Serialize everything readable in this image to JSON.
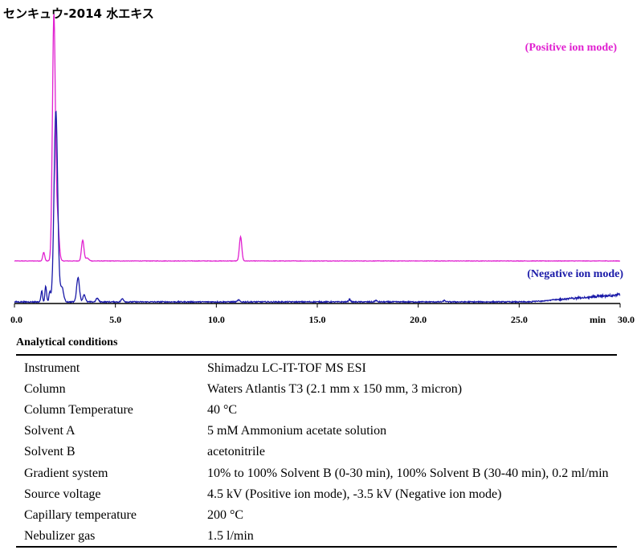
{
  "title": "センキュウ-2014 水エキス",
  "chart_data": {
    "type": "line",
    "x_axis": {
      "range": [
        0,
        30
      ],
      "ticks": [
        0,
        5,
        10,
        15,
        20,
        25,
        30
      ],
      "tick_labels": [
        "0.0",
        "5.0",
        "10.0",
        "15.0",
        "20.0",
        "25.0",
        "30.0"
      ],
      "unit_label": "min"
    },
    "series": [
      {
        "name": "(Positive ion mode)",
        "color": "#e020d0",
        "baseline": 0,
        "noise": 0.15,
        "peaks": [
          {
            "rt": 1.45,
            "height": 3.5,
            "width": 0.05
          },
          {
            "rt": 1.95,
            "height": 100,
            "width": 0.07
          },
          {
            "rt": 2.12,
            "height": 18,
            "width": 0.08
          },
          {
            "rt": 3.38,
            "height": 8.5,
            "width": 0.06
          },
          {
            "rt": 3.6,
            "height": 1.2,
            "width": 0.08
          },
          {
            "rt": 11.2,
            "height": 10,
            "width": 0.06
          }
        ]
      },
      {
        "name": "(Negative ion mode)",
        "color": "#1a1aa8",
        "baseline": 0,
        "noise": 0.45,
        "peaks": [
          {
            "rt": 1.35,
            "height": 4.5,
            "width": 0.04
          },
          {
            "rt": 1.55,
            "height": 6.5,
            "width": 0.04
          },
          {
            "rt": 1.75,
            "height": 4.0,
            "width": 0.04
          },
          {
            "rt": 2.05,
            "height": 78,
            "width": 0.09
          },
          {
            "rt": 2.35,
            "height": 6.0,
            "width": 0.08
          },
          {
            "rt": 3.15,
            "height": 10,
            "width": 0.07
          },
          {
            "rt": 3.45,
            "height": 3.0,
            "width": 0.06
          },
          {
            "rt": 4.1,
            "height": 1.5,
            "width": 0.06
          },
          {
            "rt": 5.35,
            "height": 1.3,
            "width": 0.06
          },
          {
            "rt": 11.1,
            "height": 0.8,
            "width": 0.05
          },
          {
            "rt": 16.6,
            "height": 1.0,
            "width": 0.05
          },
          {
            "rt": 17.9,
            "height": 0.6,
            "width": 0.05
          },
          {
            "rt": 21.3,
            "height": 0.6,
            "width": 0.05
          }
        ],
        "drift_start": 25.5,
        "drift_end_level": 3.0
      }
    ]
  },
  "conditions": {
    "heading": "Analytical conditions",
    "rows": [
      {
        "label": "Instrument",
        "value": "Shimadzu LC-IT-TOF MS ESI"
      },
      {
        "label": "Column",
        "value": "Waters Atlantis T3 (2.1 mm x 150 mm, 3 micron)"
      },
      {
        "label": "Column Temperature",
        "value": "40 °C"
      },
      {
        "label": "Solvent A",
        "value": "5 mM Ammonium acetate solution"
      },
      {
        "label": "Solvent B",
        "value": "acetonitrile"
      },
      {
        "label": "Gradient system",
        "value": "10% to 100% Solvent B (0-30 min), 100% Solvent B (30-40 min), 0.2 ml/min"
      },
      {
        "label": "Source voltage",
        "value": "4.5 kV (Positive ion mode), -3.5 kV (Negative ion mode)"
      },
      {
        "label": "Capillary temperature",
        "value": "200 °C"
      },
      {
        "label": "Nebulizer gas",
        "value": "1.5 l/min"
      }
    ]
  }
}
